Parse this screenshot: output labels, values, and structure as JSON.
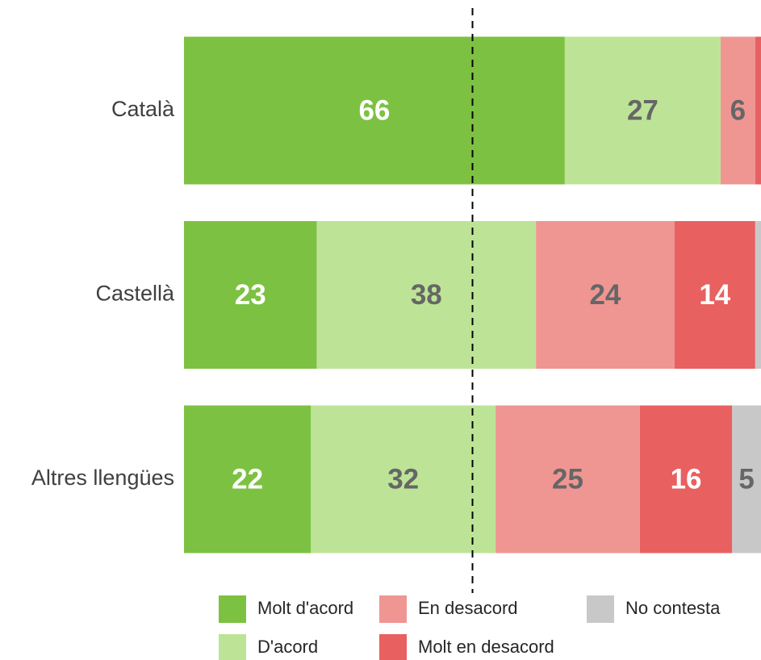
{
  "chart_data": {
    "type": "stacked-bar-horizontal",
    "categories": [
      "Català",
      "Castellà",
      "Altres llengües"
    ],
    "series": [
      {
        "name": "Molt d'acord",
        "color": "#7dc142",
        "label_color": "#ffffff",
        "values": [
          66,
          23,
          22
        ]
      },
      {
        "name": "D'acord",
        "color": "#bde496",
        "label_color": "#666666",
        "values": [
          27,
          38,
          32
        ]
      },
      {
        "name": "En desacord",
        "color": "#ef9693",
        "label_color": "#666666",
        "values": [
          6,
          24,
          25
        ]
      },
      {
        "name": "Molt en desacord",
        "color": "#e86060",
        "label_color": "#ffffff",
        "values": [
          1,
          14,
          16
        ]
      },
      {
        "name": "No contesta",
        "color": "#c8c8c8",
        "label_color": "#666666",
        "values": [
          0,
          1,
          5
        ]
      }
    ],
    "xlim": [
      0,
      100
    ],
    "reference_line": 50
  }
}
